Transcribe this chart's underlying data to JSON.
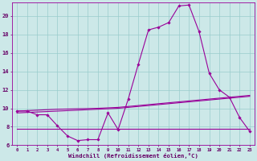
{
  "wc": [
    9.7,
    9.7,
    9.3,
    9.3,
    8.1,
    7.0,
    6.5,
    6.6,
    6.6,
    9.5,
    7.7,
    11.0,
    14.8,
    18.5,
    18.8,
    19.3,
    21.1,
    21.2,
    18.3,
    13.8,
    12.0,
    11.2,
    9.0,
    7.5
  ],
  "l1": [
    9.7,
    9.75,
    9.8,
    9.85,
    9.9,
    9.92,
    9.95,
    9.97,
    10.0,
    10.05,
    10.1,
    10.2,
    10.3,
    10.4,
    10.5,
    10.6,
    10.7,
    10.8,
    10.9,
    11.0,
    11.1,
    11.2,
    11.3,
    11.4
  ],
  "l2": [
    9.5,
    9.55,
    9.6,
    9.65,
    9.7,
    9.75,
    9.8,
    9.85,
    9.9,
    9.95,
    10.0,
    10.1,
    10.2,
    10.3,
    10.4,
    10.5,
    10.6,
    10.7,
    10.8,
    10.9,
    11.0,
    11.1,
    11.2,
    11.3
  ],
  "l3": [
    7.8,
    7.8,
    7.8,
    7.8,
    7.8,
    7.8,
    7.8,
    7.8,
    7.8,
    7.8,
    7.8,
    7.8,
    7.8,
    7.8,
    7.8,
    7.8,
    7.8,
    7.8,
    7.8,
    7.8,
    7.8,
    7.8,
    7.8,
    7.8
  ],
  "main_color": "#990099",
  "bg_color": "#cce8e8",
  "grid_color": "#99cccc",
  "xlabel": "Windchill (Refroidissement éolien,°C)",
  "ylim": [
    6,
    21.5
  ],
  "yticks": [
    6,
    8,
    10,
    12,
    14,
    16,
    18,
    20
  ],
  "font_color": "#660066"
}
